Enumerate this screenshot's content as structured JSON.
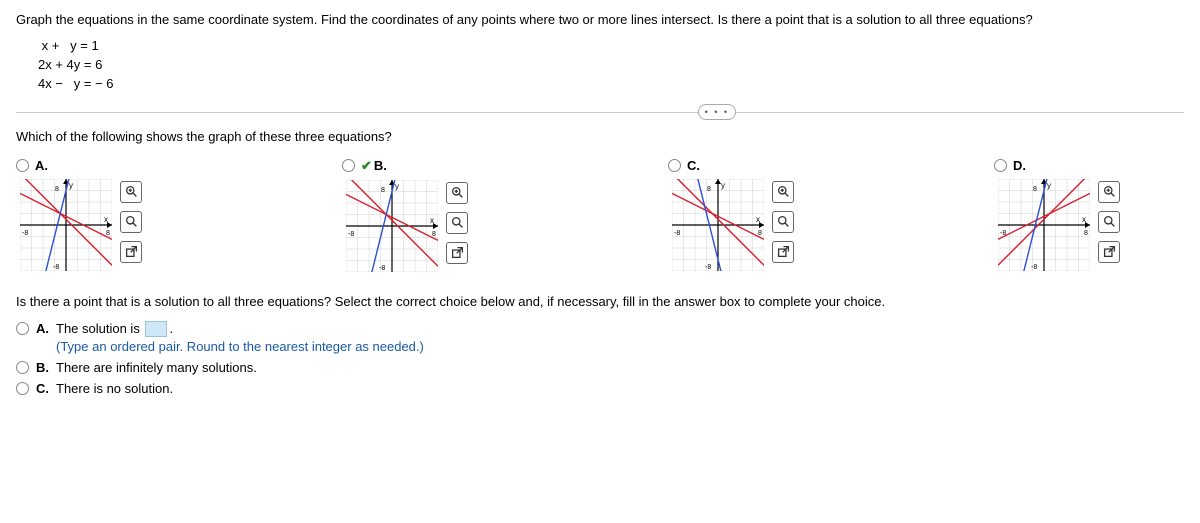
{
  "question": "Graph the equations in the same coordinate system. Find the coordinates of any points where two or more lines intersect. Is there a point that is a solution to all three equations?",
  "equations": {
    "line1": " x +   y = 1",
    "line2": "2x + 4y = 6",
    "line3": "4x −   y = − 6"
  },
  "ellipsis": "• • •",
  "subQuestion": "Which of the following shows the graph of these three equations?",
  "selectedChoice": "B",
  "choices": [
    {
      "key": "A",
      "label": "A."
    },
    {
      "key": "B",
      "label": "B."
    },
    {
      "key": "C",
      "label": "C."
    },
    {
      "key": "D",
      "label": "D."
    }
  ],
  "graph": {
    "xlim": [
      -8,
      8
    ],
    "ylim": [
      -8,
      8
    ],
    "tick_step": 2,
    "axis_labels": {
      "x": "x",
      "y": "y",
      "tick": "8",
      "ntick": "-8"
    },
    "grid_color": "#d0d0d0",
    "axis_color": "#000000",
    "arrow_color": "#000000",
    "line_colors": {
      "red": "#d81e2c",
      "blue": "#2a4fd6"
    },
    "variants": {
      "A": {
        "red_slopes": [
          -1,
          -0.5
        ],
        "blue_slope": 4,
        "blue_intercept": 6
      },
      "B": {
        "red_slopes": [
          -1,
          -0.5
        ],
        "blue_slope": 4,
        "blue_intercept": 6,
        "shift_red": 0
      },
      "C": {
        "red_slopes": [
          -1,
          -0.5
        ],
        "blue_slope": -4,
        "blue_intercept": -6
      },
      "D": {
        "red_slopes": [
          1,
          0.5
        ],
        "blue_slope": 4,
        "blue_intercept": 6
      }
    }
  },
  "icons": {
    "zoom_in": "zoom-in-icon",
    "zoom_out": "zoom-out-icon",
    "popout": "popout-icon"
  },
  "secondQuestion": "Is there a point that is a solution to all three equations? Select the correct choice below and, if necessary, fill in the answer box to complete your choice.",
  "answers": {
    "A": {
      "letter": "A.",
      "prefix": "The solution is ",
      "suffix": ".",
      "hint": "(Type an ordered pair. Round to the nearest integer as needed.)"
    },
    "B": {
      "letter": "B.",
      "text": "There are infinitely many solutions."
    },
    "C": {
      "letter": "C.",
      "text": "There is no solution."
    }
  }
}
